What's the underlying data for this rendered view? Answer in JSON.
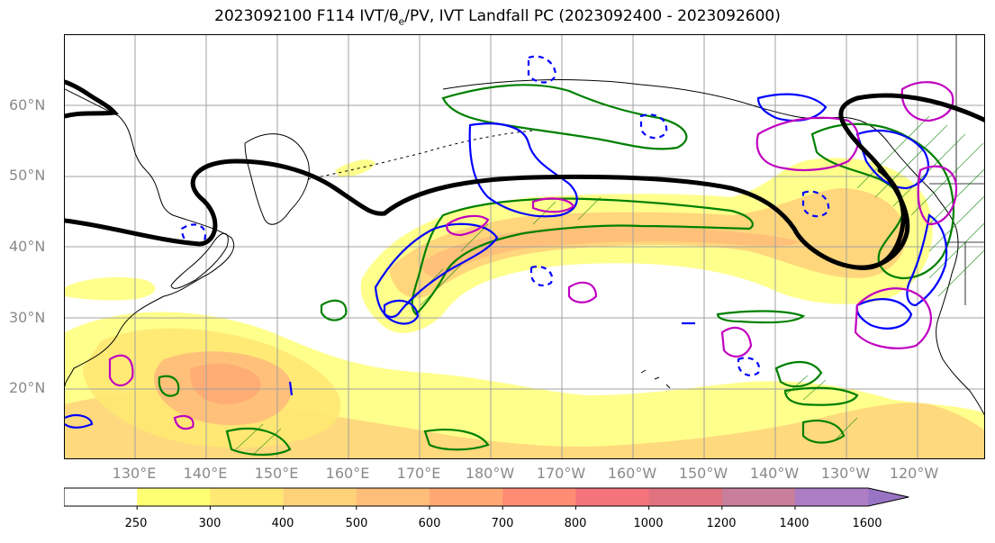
{
  "title": {
    "prefix": "2023092100 F114 IVT/θ",
    "sub": "e",
    "suffix": "/PV, IVT Landfall PC (2023092400 - 2023092600)"
  },
  "latitude_labels": [
    "60°N",
    "50°N",
    "40°N",
    "30°N",
    "20°N"
  ],
  "longitude_labels": [
    "130°E",
    "140°E",
    "150°E",
    "160°E",
    "170°E",
    "180°W",
    "170°W",
    "160°W",
    "150°W",
    "140°W",
    "130°W",
    "120°W"
  ],
  "colorbar": {
    "labels": [
      "250",
      "300",
      "400",
      "500",
      "600",
      "700",
      "800",
      "1000",
      "1200",
      "1400",
      "1600"
    ],
    "colors": [
      "#ffffff",
      "#ffff73",
      "#ffe873",
      "#ffd27a",
      "#ffbd7a",
      "#ffa873",
      "#ff8c73",
      "#f5737b",
      "#e0737f",
      "#c97e9b",
      "#ad7ec6"
    ]
  },
  "legend_colors": {
    "ivt_line": "#000000",
    "pc_positive": "#008000",
    "pc_negative": "#0000ff",
    "pv_line": "#c000c0",
    "grid": "#a0a0a0",
    "axis_label": "#8a8a8a"
  }
}
